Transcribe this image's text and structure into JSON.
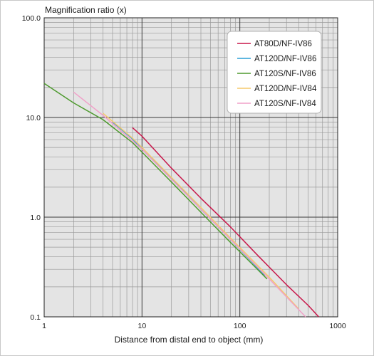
{
  "chart_data": {
    "type": "line",
    "title": "",
    "ylabel": "Magnification ratio (x)",
    "xlabel": "Distance from distal end to object (mm)",
    "x_scale": "log",
    "y_scale": "log",
    "xlim": [
      1,
      1000
    ],
    "ylim": [
      0.1,
      100
    ],
    "x_ticks": [
      {
        "value": 1,
        "label": "1"
      },
      {
        "value": 10,
        "label": "10"
      },
      {
        "value": 100,
        "label": "100"
      },
      {
        "value": 1000,
        "label": "1000"
      }
    ],
    "y_ticks": [
      {
        "value": 0.1,
        "label": "0.1"
      },
      {
        "value": 1,
        "label": "1.0"
      },
      {
        "value": 10,
        "label": "10.0"
      },
      {
        "value": 100,
        "label": "100.0"
      }
    ],
    "grid": true,
    "legend_position": "top-right",
    "series": [
      {
        "name": "AT80D/NF-IV86",
        "color": "#c8174a",
        "x": [
          8,
          10,
          20,
          40,
          80,
          150,
          300,
          500,
          640
        ],
        "y": [
          7.9,
          6.5,
          3.1,
          1.55,
          0.8,
          0.42,
          0.21,
          0.13,
          0.1
        ]
      },
      {
        "name": "AT120D/NF-IV86",
        "color": "#2a9fd6",
        "x": [
          5,
          8,
          10,
          20,
          40,
          80,
          180
        ],
        "y": [
          9.0,
          6.1,
          4.8,
          2.45,
          1.2,
          0.6,
          0.26
        ]
      },
      {
        "name": "AT120S/NF-IV86",
        "color": "#4e9a2f",
        "x": [
          1,
          2,
          4,
          8,
          10,
          20,
          40,
          80,
          190
        ],
        "y": [
          22,
          14,
          9.5,
          5.6,
          4.5,
          2.25,
          1.12,
          0.56,
          0.24
        ]
      },
      {
        "name": "AT120D/NF-IV84",
        "color": "#f5c86a",
        "x": [
          4,
          8,
          10,
          20,
          40,
          80,
          200,
          400
        ],
        "y": [
          11,
          6.2,
          5.0,
          2.5,
          1.25,
          0.62,
          0.25,
          0.12
        ]
      },
      {
        "name": "AT120S/NF-IV84",
        "color": "#f0a0c8",
        "x": [
          2,
          4,
          8,
          10,
          20,
          40,
          80,
          200,
          470
        ],
        "y": [
          18,
          10.5,
          5.8,
          4.8,
          2.4,
          1.2,
          0.6,
          0.24,
          0.1
        ]
      }
    ]
  }
}
